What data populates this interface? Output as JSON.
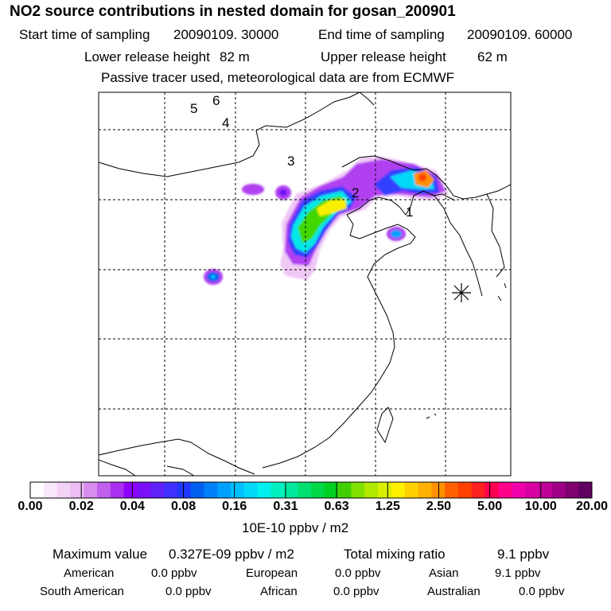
{
  "title": "NO2 source contributions in nested domain for gosan_200901",
  "sampling": {
    "start_label": "Start time of sampling",
    "start_value": "20090109. 30000",
    "end_label": "End time of sampling",
    "end_value": "20090109. 60000"
  },
  "release": {
    "lower_label": "Lower release height",
    "lower_value": "82 m",
    "upper_label": "Upper release height",
    "upper_value": "62 m"
  },
  "note": "Passive tracer used, meteorological data are from ECMWF",
  "map": {
    "site_labels": [
      "1",
      "2",
      "3",
      "4",
      "5",
      "6"
    ],
    "receptor_marker": "asterisk-icon"
  },
  "colorbar": {
    "tick_labels": [
      "0.00",
      "0.02",
      "0.04",
      "0.08",
      "0.16",
      "0.31",
      "0.63",
      "1.25",
      "2.50",
      "5.00",
      "10.00",
      "20.00"
    ],
    "unit": "10E-10 ppbv / m2",
    "colors": [
      "#ffffff",
      "#f9e8fb",
      "#f3d2f7",
      "#edbdf4",
      "#d98cf0",
      "#c060ee",
      "#a930f0",
      "#9000ff",
      "#7a10f8",
      "#6020f8",
      "#4030ff",
      "#2038ff",
      "#0060f0",
      "#0080f8",
      "#00a0ff",
      "#00c0ff",
      "#00d8f8",
      "#00f0f0",
      "#00f0c0",
      "#00e8a0",
      "#00e070",
      "#00d848",
      "#00d020",
      "#40d000",
      "#80e000",
      "#b0e800",
      "#d8f000",
      "#fff000",
      "#ffd000",
      "#ffb000",
      "#ff9000",
      "#ff6000",
      "#ff4000",
      "#ff2020",
      "#ff0050",
      "#ff0088",
      "#f000a8",
      "#d800a0",
      "#c00098",
      "#a00088",
      "#800070",
      "#600060"
    ]
  },
  "stats": {
    "max_label": "Maximum value",
    "max_value": "0.327E-09 ppbv / m2",
    "total_label": "Total mixing ratio",
    "total_value": "9.1 ppbv"
  },
  "regions": [
    {
      "name": "American",
      "value": "0.0 ppbv"
    },
    {
      "name": "European",
      "value": "0.0 ppbv"
    },
    {
      "name": "Asian",
      "value": "9.1 ppbv"
    },
    {
      "name": "South American",
      "value": "0.0 ppbv"
    },
    {
      "name": "African",
      "value": "0.0 ppbv"
    },
    {
      "name": "Australian",
      "value": "0.0 ppbv"
    }
  ]
}
